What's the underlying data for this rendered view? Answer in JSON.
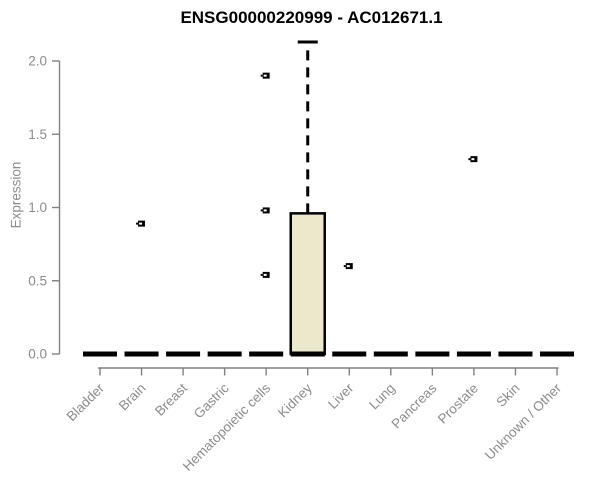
{
  "chart_data": {
    "type": "boxplot",
    "title": "ENSG00000220999 - AC012671.1",
    "ylabel": "Expression",
    "xlabel": "",
    "ylim": [
      0,
      2.15
    ],
    "yticks": [
      0,
      0.5,
      1.0,
      1.5,
      2.0
    ],
    "ytick_labels": [
      "0.0",
      "0.5",
      "1.0",
      "1.5",
      "2.0"
    ],
    "grid": false,
    "legend": false,
    "categories": [
      "Bladder",
      "Brain",
      "Breast",
      "Gastric",
      "Hematopoietic cells",
      "Kidney",
      "Liver",
      "Lung",
      "Pancreas",
      "Prostate",
      "Skin",
      "Unknown / Other"
    ],
    "series": [
      {
        "category": "Bladder",
        "q1": 0,
        "median": 0,
        "q3": 0,
        "whisker_low": 0,
        "whisker_high": 0,
        "outliers": []
      },
      {
        "category": "Brain",
        "q1": 0,
        "median": 0,
        "q3": 0,
        "whisker_low": 0,
        "whisker_high": 0,
        "outliers": [
          0.89
        ]
      },
      {
        "category": "Breast",
        "q1": 0,
        "median": 0,
        "q3": 0,
        "whisker_low": 0,
        "whisker_high": 0,
        "outliers": []
      },
      {
        "category": "Gastric",
        "q1": 0,
        "median": 0,
        "q3": 0,
        "whisker_low": 0,
        "whisker_high": 0,
        "outliers": []
      },
      {
        "category": "Hematopoietic cells",
        "q1": 0,
        "median": 0,
        "q3": 0,
        "whisker_low": 0,
        "whisker_high": 0,
        "outliers": [
          1.9,
          0.98,
          0.54
        ]
      },
      {
        "category": "Kidney",
        "q1": 0,
        "median": 0,
        "q3": 0.96,
        "whisker_low": 0,
        "whisker_high": 2.13,
        "outliers": []
      },
      {
        "category": "Liver",
        "q1": 0,
        "median": 0,
        "q3": 0,
        "whisker_low": 0,
        "whisker_high": 0,
        "outliers": [
          0.6
        ]
      },
      {
        "category": "Lung",
        "q1": 0,
        "median": 0,
        "q3": 0,
        "whisker_low": 0,
        "whisker_high": 0,
        "outliers": []
      },
      {
        "category": "Pancreas",
        "q1": 0,
        "median": 0,
        "q3": 0,
        "whisker_low": 0,
        "whisker_high": 0,
        "outliers": []
      },
      {
        "category": "Prostate",
        "q1": 0,
        "median": 0,
        "q3": 0,
        "whisker_low": 0,
        "whisker_high": 0,
        "outliers": [
          1.33
        ]
      },
      {
        "category": "Skin",
        "q1": 0,
        "median": 0,
        "q3": 0,
        "whisker_low": 0,
        "whisker_high": 0,
        "outliers": []
      },
      {
        "category": "Unknown / Other",
        "q1": 0,
        "median": 0,
        "q3": 0,
        "whisker_low": 0,
        "whisker_high": 0,
        "outliers": []
      }
    ],
    "colors": {
      "background": "#ffffff",
      "box_fill": "#ECE8CC",
      "box_border": "#000000",
      "median": "#000000",
      "whisker": "#000000",
      "outlier": "#000000",
      "axis": "#808080",
      "tick_label": "#8c8c8c",
      "title": "#000000"
    }
  }
}
